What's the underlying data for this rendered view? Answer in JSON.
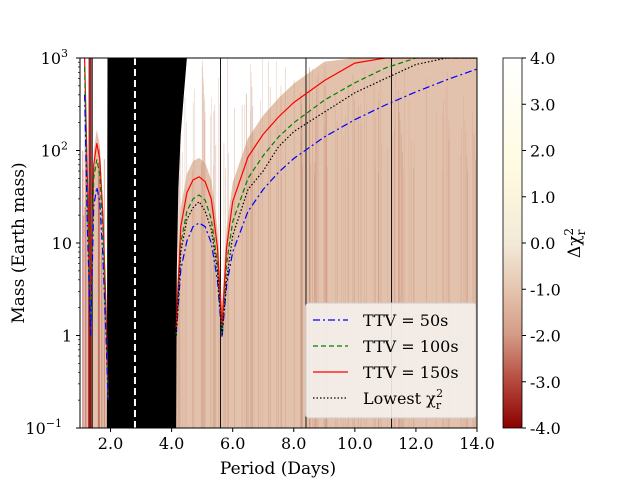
{
  "chart_data": {
    "type": "line",
    "xlabel": "Period (Days)",
    "ylabel": "Mass (Earth mass)",
    "yscale": "log",
    "xlim": [
      1.0,
      14.0
    ],
    "ylim": [
      0.1,
      1000
    ],
    "xticks": [
      {
        "value": 2.0,
        "label": "2.0"
      },
      {
        "value": 4.0,
        "label": "4.0"
      },
      {
        "value": 6.0,
        "label": "6.0"
      },
      {
        "value": 8.0,
        "label": "8.0"
      },
      {
        "value": 10.0,
        "label": "10.0"
      },
      {
        "value": 12.0,
        "label": "12.0"
      },
      {
        "value": 14.0,
        "label": "14.0"
      }
    ],
    "yticks": [
      {
        "value": 0.1,
        "label": "10",
        "exp": "−1"
      },
      {
        "value": 1,
        "label": "1",
        "exp": ""
      },
      {
        "value": 10,
        "label": "10",
        "exp": ""
      },
      {
        "value": 100,
        "label": "10",
        "exp": "2"
      },
      {
        "value": 1000,
        "label": "10",
        "exp": "3"
      }
    ],
    "colorbar": {
      "label": "Δχ",
      "label_sub": "r",
      "label_sup": "2",
      "range": [
        -4.0,
        4.0
      ],
      "ticks": [
        "4.0",
        "3.0",
        "2.0",
        "1.0",
        "0.0",
        "-1.0",
        "-2.0",
        "-3.0",
        "-4.0"
      ],
      "tick_values": [
        4,
        3,
        2,
        1,
        0,
        -1,
        -2,
        -3,
        -4
      ],
      "colors": [
        "#8b0000",
        "#b4453a",
        "#d49a86",
        "#e6c7b0",
        "#f2ead8",
        "#fffbe0",
        "#ffffff"
      ]
    },
    "reference_lines": {
      "transit_period_dashed": 2.8,
      "resonances": [
        1.4,
        5.6,
        8.4,
        11.2
      ]
    },
    "series": [
      {
        "name": "TTV = 50s",
        "color": "#0000ff",
        "dash": "7,3,2,3",
        "x": [
          4.15,
          4.3,
          4.5,
          4.7,
          4.9,
          5.1,
          5.3,
          5.5,
          5.65,
          5.8,
          6.0,
          6.5,
          7.0,
          7.5,
          8.0,
          9.0,
          10.0,
          11.0,
          12.0,
          13.0,
          14.0
        ],
        "y": [
          1,
          5.2,
          10.5,
          15,
          16.5,
          15,
          10,
          4,
          0.95,
          3.5,
          8,
          22,
          38,
          58,
          82,
          140,
          215,
          310,
          430,
          580,
          760
        ]
      },
      {
        "name": "TTV = 100s",
        "color": "#008000",
        "dash": "5,3",
        "x": [
          4.15,
          4.3,
          4.5,
          4.7,
          4.9,
          5.1,
          5.3,
          5.5,
          5.65,
          5.8,
          6.0,
          6.5,
          7.0,
          7.5,
          8.0,
          9.0,
          10.0,
          11.0,
          12.0,
          13.0,
          14.0
        ],
        "y": [
          1,
          10,
          22,
          30,
          33,
          29,
          18,
          6,
          1.05,
          6,
          17,
          50,
          88,
          140,
          200,
          350,
          540,
          780,
          1000,
          1000,
          1000
        ]
      },
      {
        "name": "TTV = 150s",
        "color": "#ff0000",
        "dash": "",
        "x": [
          4.15,
          4.3,
          4.5,
          4.7,
          4.9,
          5.1,
          5.3,
          5.5,
          5.65,
          5.8,
          6.0,
          6.5,
          7.0,
          7.5,
          8.0,
          9.0,
          10.0,
          11.0,
          12.0,
          13.0,
          14.0
        ],
        "y": [
          1.2,
          15,
          35,
          48,
          52,
          46,
          30,
          9,
          1.3,
          9,
          28,
          85,
          150,
          230,
          330,
          570,
          880,
          1000,
          1000,
          1000,
          1000
        ]
      },
      {
        "name": "Lowest χ",
        "name_sub": "r",
        "name_sup": "2",
        "color": "#000000",
        "dash": "1.5,2",
        "x": [
          4.15,
          4.3,
          4.5,
          4.7,
          4.9,
          5.1,
          5.3,
          5.5,
          5.65,
          5.8,
          6.0,
          6.5,
          7.0,
          7.5,
          8.0,
          9.0,
          10.0,
          11.0,
          12.0,
          13.0,
          14.0
        ],
        "y": [
          1,
          8,
          18,
          24,
          28,
          22,
          14,
          5,
          1,
          4,
          12,
          38,
          60,
          110,
          160,
          260,
          420,
          600,
          850,
          1000,
          1000
        ]
      }
    ],
    "left_region_series": [
      {
        "color": "#ff0000",
        "dash": "",
        "x": [
          1.15,
          1.25,
          1.35,
          1.45,
          1.55,
          1.65,
          1.75,
          1.85,
          1.92
        ],
        "y": [
          1000,
          40,
          2,
          70,
          120,
          80,
          20,
          2,
          0.2
        ]
      },
      {
        "color": "#008000",
        "dash": "5,3",
        "x": [
          1.15,
          1.25,
          1.35,
          1.45,
          1.55,
          1.65,
          1.75,
          1.85,
          1.92
        ],
        "y": [
          800,
          25,
          1.5,
          50,
          80,
          55,
          14,
          1.5,
          0.2
        ]
      },
      {
        "color": "#0000ff",
        "dash": "7,3,2,3",
        "x": [
          1.15,
          1.25,
          1.35,
          1.45,
          1.55,
          1.65,
          1.75,
          1.85,
          1.92
        ],
        "y": [
          400,
          12,
          1,
          25,
          40,
          28,
          7,
          1,
          0.2
        ]
      }
    ],
    "legend": {
      "placement": "lower-right"
    }
  }
}
